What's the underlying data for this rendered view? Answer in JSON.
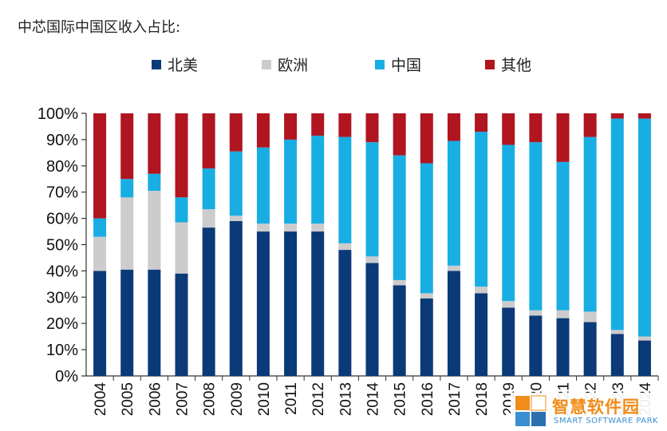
{
  "heading": "中芯国际中国区收入占比:",
  "watermark": {
    "name_cn": "智慧软件园",
    "name_en": "SMART SOFTWARE PARK"
  },
  "chart_data": {
    "type": "bar",
    "stacked": true,
    "title": "",
    "xlabel": "",
    "ylabel": "",
    "ylim": [
      0,
      100
    ],
    "y_ticks": [
      "0%",
      "10%",
      "20%",
      "30%",
      "40%",
      "50%",
      "60%",
      "70%",
      "80%",
      "90%",
      "100%"
    ],
    "grid": false,
    "legend_position": "top",
    "categories": [
      "2004",
      "2005",
      "2006",
      "2007",
      "2008",
      "2009",
      "2010",
      "2011",
      "2012",
      "2013",
      "2014",
      "2015",
      "2016",
      "2017",
      "2018",
      "2019",
      "2020",
      "2021",
      "2022",
      "2023",
      "2024"
    ],
    "series": [
      {
        "name": "北美",
        "color": "#0b3a78",
        "values": [
          40,
          40.5,
          40.5,
          39,
          56.5,
          59,
          55,
          55,
          55,
          48,
          43,
          34.5,
          29.5,
          40,
          31.5,
          26,
          23,
          22,
          20.5,
          16,
          13.5
        ]
      },
      {
        "name": "欧洲",
        "color": "#cccccc",
        "values": [
          13,
          27.5,
          30,
          19.5,
          7,
          2,
          3,
          3,
          3,
          2.5,
          2.5,
          2,
          2,
          2,
          2.5,
          2.5,
          2,
          3,
          4,
          1.5,
          1.5
        ]
      },
      {
        "name": "中国",
        "color": "#18aee4",
        "values": [
          7,
          7,
          6.5,
          9.5,
          15.5,
          24.5,
          29,
          32,
          33.5,
          40.5,
          43.5,
          47.5,
          49.5,
          47.5,
          59,
          59.5,
          64,
          56.5,
          66.5,
          80.5,
          83
        ]
      },
      {
        "name": "其他",
        "color": "#b01520",
        "values": [
          40,
          25,
          23,
          32,
          21,
          14.5,
          13,
          10,
          8.5,
          9,
          11,
          16,
          19,
          10.5,
          7,
          12,
          11,
          18.5,
          9,
          2,
          2
        ]
      }
    ]
  }
}
